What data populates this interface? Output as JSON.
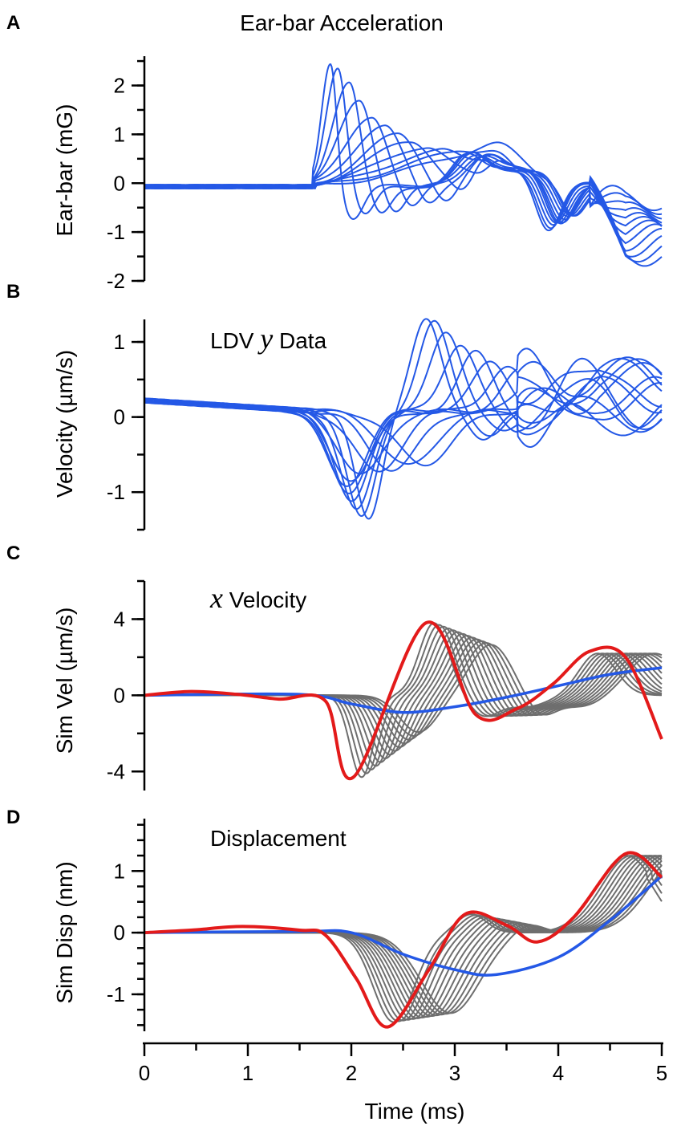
{
  "chart_data": [
    {
      "type": "line",
      "panel": "A",
      "title": "Ear-bar Acceleration",
      "ylabel": "Ear-bar (mG)",
      "xlabel": "",
      "xlim": [
        0,
        5
      ],
      "ylim": [
        -2,
        2.6
      ],
      "yticks": [
        2,
        1,
        0,
        -1,
        -2
      ],
      "ytick_labels": [
        "2",
        "1",
        "0",
        "-1",
        "-2"
      ],
      "series_count": 12,
      "series_colors": [
        "#2458e6"
      ],
      "series_peaks": [
        {
          "t": 1.8,
          "v": 2.6
        },
        {
          "t": 1.87,
          "v": 2.45
        },
        {
          "t": 1.98,
          "v": 2.1
        },
        {
          "t": 2.08,
          "v": 1.75
        },
        {
          "t": 2.2,
          "v": 1.45
        },
        {
          "t": 2.32,
          "v": 1.25
        },
        {
          "t": 2.45,
          "v": 1.05
        },
        {
          "t": 2.58,
          "v": 0.92
        },
        {
          "t": 2.72,
          "v": 0.8
        },
        {
          "t": 2.85,
          "v": 0.7
        },
        {
          "t": 3.0,
          "v": 0.62
        },
        {
          "t": 3.15,
          "v": 0.55
        }
      ]
    },
    {
      "type": "line",
      "panel": "B",
      "title": "LDV y Data",
      "title_parts": {
        "pre": "LDV ",
        "var": "y",
        "post": " Data"
      },
      "ylabel": "Velocity (µm/s)",
      "xlabel": "",
      "xlim": [
        0,
        5
      ],
      "ylim": [
        -1.5,
        1.3
      ],
      "yticks": [
        1,
        0,
        -1
      ],
      "ytick_labels": [
        "1",
        "0",
        "-1"
      ],
      "series_count": 12,
      "series_colors": [
        "#2458e6"
      ],
      "series_extrema": [
        {
          "t_min": 2.17,
          "min": -1.45,
          "t_max": 2.72,
          "max": 1.25
        },
        {
          "t_min": 2.1,
          "min": -1.42,
          "t_max": 2.8,
          "max": 1.18
        },
        {
          "t_min": 2.05,
          "min": -1.33,
          "t_max": 2.92,
          "max": 1.05
        },
        {
          "t_min": 2.0,
          "min": -1.22,
          "t_max": 3.05,
          "max": 0.9
        },
        {
          "t_min": 1.97,
          "min": -1.1,
          "t_max": 3.2,
          "max": 0.78
        },
        {
          "t_min": 1.95,
          "min": -0.98,
          "t_max": 3.35,
          "max": 0.68
        },
        {
          "t_min": 2.0,
          "min": -0.9,
          "t_max": 3.5,
          "max": 0.6
        },
        {
          "t_min": 2.1,
          "min": -0.85,
          "t_max": 3.65,
          "max": 0.55
        },
        {
          "t_min": 2.25,
          "min": -0.8,
          "t_max": 3.82,
          "max": 0.5
        },
        {
          "t_min": 2.4,
          "min": -0.77,
          "t_max": 4.0,
          "max": 0.48
        },
        {
          "t_min": 2.55,
          "min": -0.73,
          "t_max": 4.2,
          "max": 0.47
        },
        {
          "t_min": 2.7,
          "min": -0.7,
          "t_max": 4.4,
          "max": 0.47
        }
      ]
    },
    {
      "type": "line",
      "panel": "C",
      "title": "x Velocity",
      "title_parts": {
        "pre": "",
        "var": "x",
        "post": " Velocity"
      },
      "ylabel": "Sim Vel (µm/s)",
      "xlabel": "",
      "xlim": [
        0,
        5
      ],
      "ylim": [
        -5,
        6
      ],
      "yticks": [
        4,
        0,
        -4
      ],
      "ytick_labels": [
        "4",
        "0",
        "-4"
      ],
      "gray_series_count": 13,
      "highlight_red": {
        "color": "#e31a1a",
        "points": [
          [
            0,
            0
          ],
          [
            0.45,
            0.2
          ],
          [
            0.9,
            0.05
          ],
          [
            1.3,
            -0.2
          ],
          [
            1.75,
            -0.3
          ],
          [
            2.02,
            -4.3
          ],
          [
            2.72,
            3.8
          ],
          [
            3.2,
            -1.0
          ],
          [
            3.6,
            -0.7
          ],
          [
            3.95,
            0.6
          ],
          [
            4.3,
            2.3
          ],
          [
            4.65,
            2.0
          ],
          [
            5.0,
            -2.3
          ]
        ]
      },
      "highlight_blue": {
        "color": "#2458e6",
        "points": [
          [
            0,
            0
          ],
          [
            1.5,
            0.05
          ],
          [
            2.0,
            -0.45
          ],
          [
            2.5,
            -0.9
          ],
          [
            3.0,
            -0.6
          ],
          [
            3.5,
            -0.1
          ],
          [
            4.0,
            0.5
          ],
          [
            4.5,
            1.1
          ],
          [
            5.0,
            1.45
          ]
        ]
      }
    },
    {
      "type": "line",
      "panel": "D",
      "title": "Displacement",
      "ylabel": "Sim Disp (nm)",
      "xlabel": "Time (ms)",
      "xlim": [
        0,
        5
      ],
      "ylim": [
        -1.6,
        1.85
      ],
      "yticks": [
        1,
        0,
        -1
      ],
      "ytick_labels": [
        "1",
        "0",
        "-1"
      ],
      "xticks": [
        0,
        1,
        2,
        3,
        4,
        5
      ],
      "xtick_labels": [
        "0",
        "1",
        "2",
        "3",
        "4",
        "5"
      ],
      "gray_series_count": 13,
      "highlight_red": {
        "color": "#e31a1a",
        "points": [
          [
            0,
            0
          ],
          [
            0.45,
            0.04
          ],
          [
            0.95,
            0.1
          ],
          [
            1.5,
            0.04
          ],
          [
            1.75,
            -0.04
          ],
          [
            2.05,
            -0.75
          ],
          [
            2.35,
            -1.53
          ],
          [
            2.75,
            -0.6
          ],
          [
            3.1,
            0.3
          ],
          [
            3.5,
            0.12
          ],
          [
            3.8,
            -0.15
          ],
          [
            4.15,
            0.25
          ],
          [
            4.65,
            1.28
          ],
          [
            5.0,
            0.9
          ]
        ]
      },
      "highlight_blue": {
        "color": "#2458e6",
        "points": [
          [
            0,
            0
          ],
          [
            1.5,
            0.02
          ],
          [
            2.0,
            0.0
          ],
          [
            2.5,
            -0.35
          ],
          [
            3.0,
            -0.6
          ],
          [
            3.4,
            -0.68
          ],
          [
            4.0,
            -0.4
          ],
          [
            4.5,
            0.2
          ],
          [
            5.0,
            0.92
          ]
        ]
      }
    }
  ]
}
